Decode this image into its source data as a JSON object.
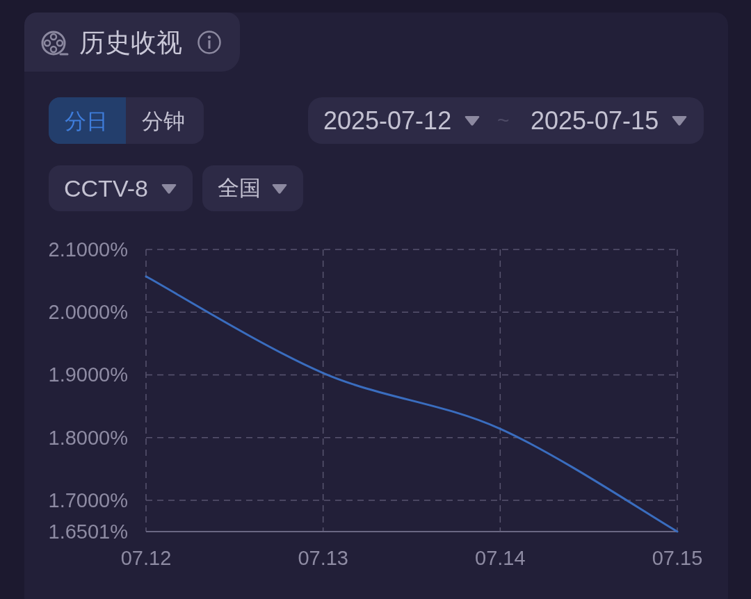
{
  "chart_data": {
    "type": "line",
    "title": "历史收视",
    "annotations": [
      "分日",
      "分钟",
      "2025-07-12",
      "~",
      "2025-07-15",
      "CCTV-8",
      "全国"
    ],
    "categories": [
      "07.12",
      "07.13",
      "07.14",
      "07.15"
    ],
    "series": [
      {
        "color": "#3a6dbf",
        "values": [
          2.057,
          1.903,
          1.814,
          1.6501
        ]
      }
    ],
    "ylim": [
      1.6501,
      2.1
    ],
    "yticks": [
      {
        "value": 1.6501,
        "label": "1.6501%"
      },
      {
        "value": 1.7,
        "label": "1.7000%"
      },
      {
        "value": 1.8,
        "label": "1.8000%"
      },
      {
        "value": 1.9,
        "label": "1.9000%"
      },
      {
        "value": 2.0,
        "label": "2.0000%"
      },
      {
        "value": 2.1,
        "label": "2.1000%"
      }
    ],
    "grid": true,
    "line_style": "solid"
  }
}
